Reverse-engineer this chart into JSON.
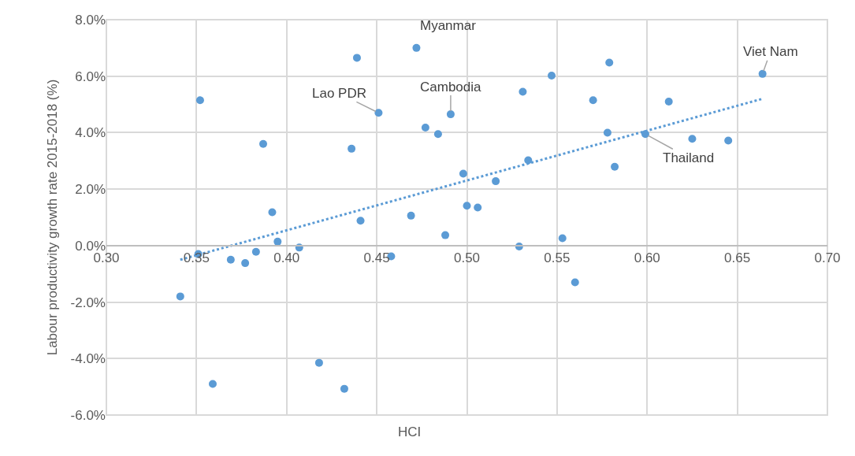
{
  "chart_data": {
    "type": "scatter",
    "xlabel": "HCI",
    "ylabel": "Labour productivity growth rate 2015-2018 (%)",
    "xlim": [
      0.3,
      0.7
    ],
    "ylim": [
      -6,
      8
    ],
    "xticks": [
      {
        "value": 0.3,
        "label": "0.30"
      },
      {
        "value": 0.35,
        "label": "0.35"
      },
      {
        "value": 0.4,
        "label": "0.40"
      },
      {
        "value": 0.45,
        "label": "0.45"
      },
      {
        "value": 0.5,
        "label": "0.50"
      },
      {
        "value": 0.55,
        "label": "0.55"
      },
      {
        "value": 0.6,
        "label": "0.60"
      },
      {
        "value": 0.65,
        "label": "0.65"
      },
      {
        "value": 0.7,
        "label": "0.70"
      }
    ],
    "yticks": [
      {
        "value": -6,
        "label": "-6.0%"
      },
      {
        "value": -4,
        "label": "-4.0%"
      },
      {
        "value": -2,
        "label": "-2.0%"
      },
      {
        "value": 0,
        "label": "0.0%"
      },
      {
        "value": 2,
        "label": "2.0%"
      },
      {
        "value": 4,
        "label": "4.0%"
      },
      {
        "value": 6,
        "label": "6.0%"
      },
      {
        "value": 8,
        "label": "8.0%"
      }
    ],
    "grid": true,
    "marker": "circle",
    "series": [
      {
        "color": "#5b9bd5",
        "x": [
          0.352,
          0.387,
          0.392,
          0.395,
          0.407,
          0.351,
          0.369,
          0.377,
          0.383,
          0.341,
          0.359,
          0.418,
          0.432,
          0.439,
          0.436,
          0.441,
          0.451,
          0.458,
          0.472,
          0.469,
          0.477,
          0.484,
          0.488,
          0.491,
          0.498,
          0.5,
          0.506,
          0.516,
          0.529,
          0.531,
          0.534,
          0.547,
          0.553,
          0.56,
          0.57,
          0.578,
          0.579,
          0.582,
          0.599,
          0.612,
          0.625,
          0.645,
          0.664
        ],
        "values": [
          5.15,
          3.6,
          1.18,
          0.14,
          -0.07,
          -0.3,
          -0.5,
          -0.62,
          -0.22,
          -1.8,
          -4.9,
          -4.15,
          -5.07,
          6.65,
          3.43,
          0.88,
          4.7,
          -0.38,
          7.0,
          1.06,
          4.18,
          3.95,
          0.37,
          4.65,
          2.55,
          1.41,
          1.35,
          2.28,
          -0.03,
          5.45,
          3.02,
          6.02,
          0.26,
          -1.3,
          5.15,
          4.0,
          6.48,
          2.79,
          3.95,
          5.1,
          3.78,
          3.72,
          6.08
        ]
      },
      {
        "type": "line",
        "color": "#5b9bd5",
        "line_style": "dotted",
        "marker": "none",
        "x": [
          0.341,
          0.664
        ],
        "values": [
          -0.5,
          5.2
        ]
      }
    ],
    "annotations": [
      {
        "text": "Myanmar",
        "x": 0.472,
        "y": 7.0
      },
      {
        "text": "Lao PDR",
        "x": 0.451,
        "y": 4.7
      },
      {
        "text": "Cambodia",
        "x": 0.491,
        "y": 4.65
      },
      {
        "text": "Viet Nam",
        "x": 0.664,
        "y": 6.08
      },
      {
        "text": "Thailand",
        "x": 0.599,
        "y": 3.95
      }
    ]
  }
}
